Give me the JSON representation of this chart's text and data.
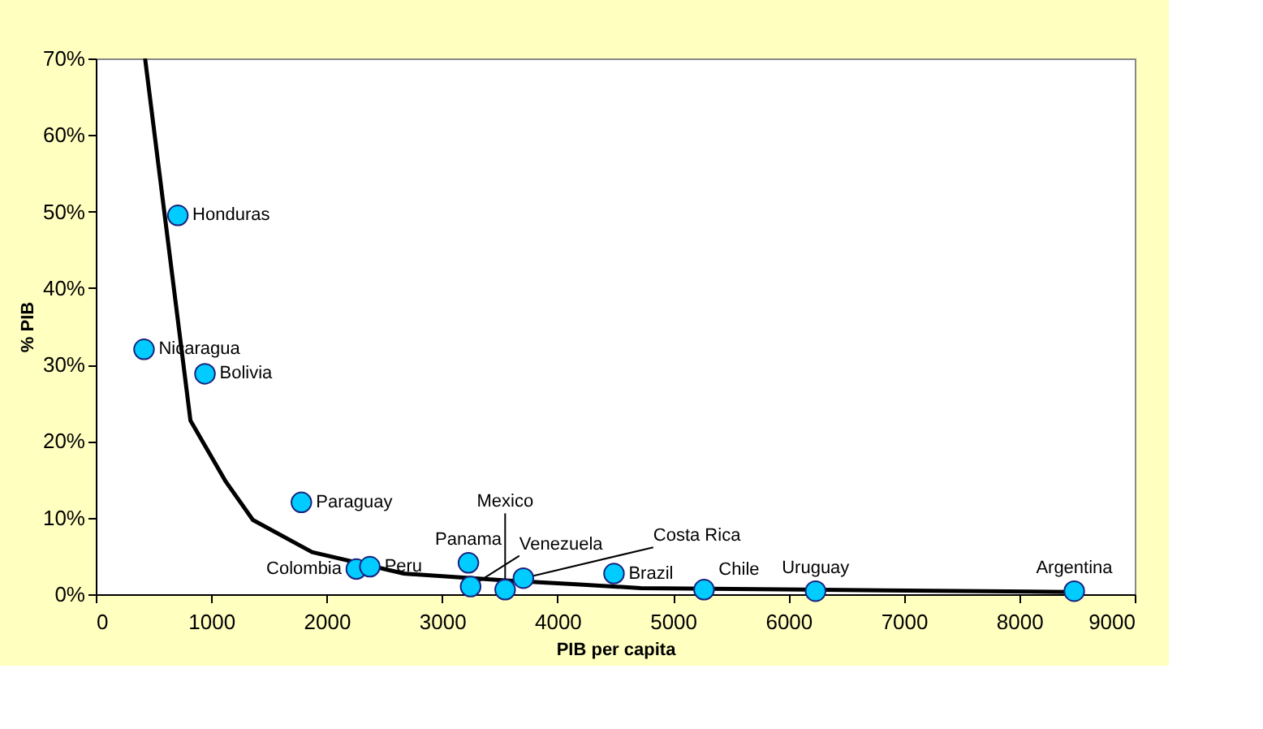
{
  "chart_data": {
    "type": "scatter",
    "xlabel": "PIB per capita",
    "ylabel": "% PIB",
    "xlim": [
      0,
      9000
    ],
    "xticks": [
      0,
      1000,
      2000,
      3000,
      4000,
      5000,
      6000,
      7000,
      8000,
      9000
    ],
    "ylim": [
      0,
      70
    ],
    "yticks": [
      {
        "value": 0,
        "label": "0%"
      },
      {
        "value": 10,
        "label": "10%"
      },
      {
        "value": 20,
        "label": "20%"
      },
      {
        "value": 30,
        "label": "30%"
      },
      {
        "value": 40,
        "label": "40%"
      },
      {
        "value": 50,
        "label": "50%"
      },
      {
        "value": 60,
        "label": "60%"
      },
      {
        "value": 70,
        "label": "70%"
      }
    ],
    "grid": false,
    "series": [
      {
        "type": "line",
        "color": "#000000",
        "line_style": "solid",
        "x": [
          427,
          820,
          1127,
          1361,
          1874,
          2668,
          3550,
          4162,
          4722,
          6823,
          8452
        ],
        "values": [
          70,
          22.7,
          14.7,
          9.7,
          5.5,
          2.7,
          1.8,
          1.3,
          0.8,
          0.5,
          0.3
        ]
      },
      {
        "marker": "circle",
        "color": "#00ccff",
        "x": [
          711,
          418,
          946,
          1781,
          2257,
          2374,
          3228,
          3247,
          3546,
          3704,
          4489,
          5269,
          6235,
          8476
        ],
        "values": [
          49.5,
          32.0,
          28.8,
          12.0,
          3.3,
          3.6,
          4.1,
          1.0,
          0.6,
          2.1,
          2.7,
          0.6,
          0.4,
          0.4
        ]
      }
    ],
    "annotations": [
      {
        "text": "Honduras",
        "x": 711,
        "y": 49.5
      },
      {
        "text": "Nicaragua",
        "x": 418,
        "y": 32.0
      },
      {
        "text": "Bolivia",
        "x": 946,
        "y": 28.8
      },
      {
        "text": "Paraguay",
        "x": 1781,
        "y": 12.0
      },
      {
        "text": "Colombia",
        "x": 2257,
        "y": 3.3
      },
      {
        "text": "Peru",
        "x": 2374,
        "y": 3.6
      },
      {
        "text": "Panama",
        "x": 3228,
        "y": 4.1
      },
      {
        "text": "Venezuela",
        "x": 3247,
        "y": 1.0
      },
      {
        "text": "Mexico",
        "x": 3546,
        "y": 0.6
      },
      {
        "text": "Costa Rica",
        "x": 3704,
        "y": 2.1
      },
      {
        "text": "Brazil",
        "x": 4489,
        "y": 2.7
      },
      {
        "text": "Chile",
        "x": 5269,
        "y": 0.6
      },
      {
        "text": "Uruguay",
        "x": 6235,
        "y": 0.4
      },
      {
        "text": "Argentina",
        "x": 8476,
        "y": 0.4
      }
    ]
  }
}
